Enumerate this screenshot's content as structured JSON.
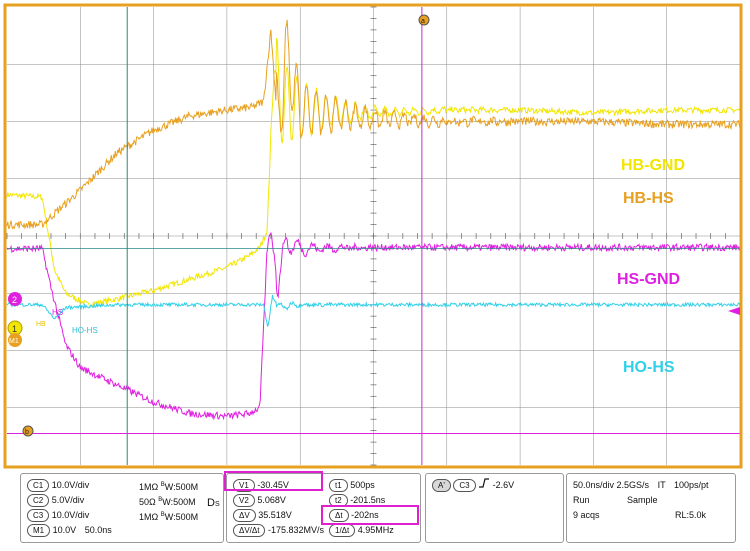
{
  "chart_data": {
    "type": "line",
    "title": "",
    "xlabel": "",
    "ylabel": "",
    "grid": true,
    "time_per_div_ns": 50,
    "cursor_time_ns": -202,
    "series": [
      {
        "name": "HB-GND",
        "color": "#f2e600",
        "t": [
          0,
          0.48,
          0.65,
          0.8,
          1.1,
          1.5,
          2.0,
          2.5,
          3.0,
          3.3,
          3.45,
          3.55,
          3.6,
          3.65,
          3.7,
          4.0,
          5.0,
          6.0,
          7.0,
          8.0,
          9.0,
          10.0
        ],
        "div": [
          0.72,
          0.68,
          -0.6,
          -1.0,
          -1.2,
          -1.1,
          -0.95,
          -0.75,
          -0.55,
          -0.35,
          -0.2,
          0.1,
          1.8,
          3.0,
          2.4,
          2.2,
          2.15,
          2.2,
          2.2,
          2.15,
          2.2,
          2.2
        ]
      },
      {
        "name": "HB-HS",
        "color": "#e8a020",
        "t": [
          0,
          0.48,
          1.0,
          1.5,
          2.0,
          2.5,
          3.0,
          3.35,
          3.5,
          3.6,
          3.7,
          3.8,
          4.0,
          5.0,
          6.0,
          7.0,
          8.0,
          9.0,
          10.0
        ],
        "div": [
          0.2,
          0.2,
          0.8,
          1.45,
          1.85,
          2.1,
          2.2,
          2.25,
          2.35,
          3.6,
          1.8,
          3.2,
          2.2,
          2.05,
          2.0,
          2.0,
          2.0,
          1.95,
          1.95
        ]
      },
      {
        "name": "HS-GND",
        "color": "#e020e0",
        "t": [
          0,
          0.48,
          0.6,
          0.8,
          1.0,
          1.5,
          2.0,
          2.5,
          3.0,
          3.3,
          3.45,
          3.55,
          3.6,
          3.7,
          3.8,
          4.0,
          5.0,
          6.0,
          7.0,
          8.0,
          9.0,
          10.0
        ],
        "div": [
          -0.22,
          -0.22,
          -0.9,
          -1.9,
          -2.3,
          -2.6,
          -2.9,
          -3.1,
          -3.15,
          -3.1,
          -3.0,
          -0.2,
          0.1,
          -0.9,
          -0.1,
          -0.22,
          -0.2,
          -0.2,
          -0.2,
          -0.2,
          -0.2,
          -0.2
        ]
      },
      {
        "name": "HO-HS",
        "color": "#30d0e8",
        "t": [
          0,
          0.48,
          0.55,
          0.65,
          0.8,
          1.5,
          3.0,
          3.5,
          3.56,
          3.62,
          3.7,
          3.9,
          5.0,
          10.0
        ],
        "div": [
          -1.2,
          -1.2,
          -1.3,
          -1.45,
          -1.25,
          -1.2,
          -1.2,
          -1.2,
          -1.6,
          -1.05,
          -1.25,
          -1.2,
          -1.2,
          -1.2
        ]
      }
    ],
    "channel_labels": {
      "hs": "HS",
      "hb": "HB",
      "ho": "HO-HS"
    }
  },
  "markers": {
    "a": "a",
    "b": "b",
    "ch2": "2",
    "ch1": "1",
    "m1": "M1"
  },
  "readout": {
    "ch": [
      {
        "id": "C1",
        "scale": "10.0V/div",
        "imp": "1MΩ",
        "bw": "W:500M"
      },
      {
        "id": "C2",
        "scale": "5.0V/div",
        "imp": "50Ω",
        "bw": "W:500M"
      },
      {
        "id": "C3",
        "scale": "10.0V/div",
        "imp": "1MΩ",
        "bw": "W:500M"
      }
    ],
    "math": {
      "id": "M1",
      "scale": "10.0V",
      "time": "50.0ns"
    },
    "bw_prefix": "B",
    "ds": "D",
    "ds_sub": "S",
    "cursor": {
      "v1_label": "V1",
      "v1": "-30.45V",
      "v2_label": "V2",
      "v2": "5.068V",
      "dv_label": "ΔV",
      "dv": "35.518V",
      "dvdt_label": "ΔV/Δt",
      "dvdt": "-175.832MV/s",
      "t1_label": "t1",
      "t1": "500ps",
      "t2_label": "t2",
      "t2": "-201.5ns",
      "dt_label": "Δt",
      "dt": "-202ns",
      "inv_label": "1/Δt",
      "inv": "4.95MHz"
    },
    "trigger": {
      "a": "A'",
      "ch": "C3",
      "level": "-2.6V"
    },
    "acq": {
      "timebase": "50.0ns/div",
      "rate": "2.5GS/s",
      "mode": "IT",
      "res": "100ps/pt",
      "state": "Run",
      "sample": "Sample",
      "acqs": "9 acqs",
      "rl": "RL:5.0k"
    }
  },
  "colors": {
    "frame": "#e8a020",
    "grid": "#7a7a7a",
    "hb_gnd": "#f2e600",
    "hb_hs": "#e8a020",
    "hs_gnd": "#e020e0",
    "ho_hs": "#30d0e8",
    "cursor_a": "#c030c0",
    "cursor_b": "#e020e0",
    "trigger": "#2a8a6a"
  }
}
